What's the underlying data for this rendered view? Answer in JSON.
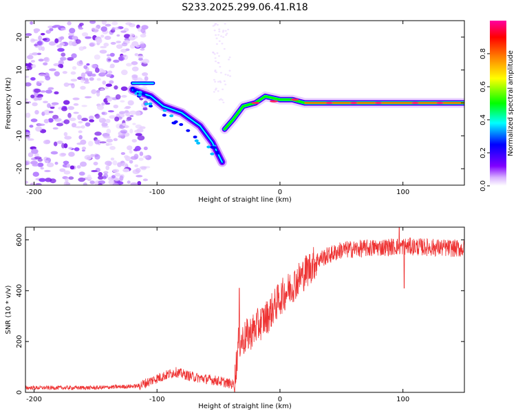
{
  "title": "S233.2025.299.06.41.R18",
  "chart_data": [
    {
      "type": "heatmap",
      "xlabel": "Height of straight line (km)",
      "ylabel": "Frequency (Hz)",
      "xlim": [
        -207,
        150
      ],
      "ylim": [
        -25,
        25
      ],
      "xticks": [
        -200,
        -100,
        0,
        100
      ],
      "yticks": [
        -20,
        -10,
        0,
        10,
        20
      ],
      "colorbar": {
        "label": "Normalized spectral amplitude",
        "range": [
          0,
          1
        ],
        "ticks": [
          "0.0",
          "0.2",
          "0.4",
          "0.6",
          "0.8"
        ],
        "colors": [
          "#ffffff",
          "#d9b3ff",
          "#8000ff",
          "#0000ff",
          "#00ffff",
          "#00ff00",
          "#ffff00",
          "#ff8000",
          "#ff0000",
          "#ff00a0"
        ]
      },
      "ridge": [
        {
          "x": -120,
          "y": 4
        },
        {
          "x": -105,
          "y": 2
        },
        {
          "x": -95,
          "y": -1
        },
        {
          "x": -80,
          "y": -3
        },
        {
          "x": -65,
          "y": -7
        },
        {
          "x": -55,
          "y": -12
        },
        {
          "x": -47,
          "y": -18
        },
        {
          "x": -45,
          "y": -8
        },
        {
          "x": -38,
          "y": -5
        },
        {
          "x": -30,
          "y": -1
        },
        {
          "x": -20,
          "y": 0
        },
        {
          "x": -12,
          "y": 2
        },
        {
          "x": 0,
          "y": 1
        },
        {
          "x": 10,
          "y": 1
        },
        {
          "x": 20,
          "y": 0
        },
        {
          "x": 150,
          "y": 0
        }
      ],
      "secondary_band": {
        "x_start": -120,
        "x_end": -103,
        "y": 6
      }
    },
    {
      "type": "line",
      "xlabel": "Height of straight line (km)",
      "ylabel": "SNR (10 * v/v)",
      "xlim": [
        -207,
        150
      ],
      "ylim": [
        0,
        650
      ],
      "xticks": [
        -200,
        -100,
        0,
        100
      ],
      "yticks": [
        0,
        200,
        400,
        600
      ],
      "color": "#ee3333",
      "envelope": [
        {
          "x": -207,
          "y": 18
        },
        {
          "x": -150,
          "y": 18
        },
        {
          "x": -115,
          "y": 25
        },
        {
          "x": -100,
          "y": 55
        },
        {
          "x": -85,
          "y": 80
        },
        {
          "x": -70,
          "y": 60
        },
        {
          "x": -50,
          "y": 45
        },
        {
          "x": -37,
          "y": 30
        },
        {
          "x": -34,
          "y": 190
        },
        {
          "x": -25,
          "y": 230
        },
        {
          "x": -10,
          "y": 300
        },
        {
          "x": 0,
          "y": 370
        },
        {
          "x": 10,
          "y": 420
        },
        {
          "x": 20,
          "y": 470
        },
        {
          "x": 30,
          "y": 520
        },
        {
          "x": 50,
          "y": 560
        },
        {
          "x": 80,
          "y": 570
        },
        {
          "x": 100,
          "y": 575
        },
        {
          "x": 150,
          "y": 565
        }
      ],
      "spikes": [
        {
          "x": -33,
          "y": 410
        },
        {
          "x": 97,
          "y": 650
        },
        {
          "x": 101,
          "y": 410
        }
      ]
    }
  ]
}
